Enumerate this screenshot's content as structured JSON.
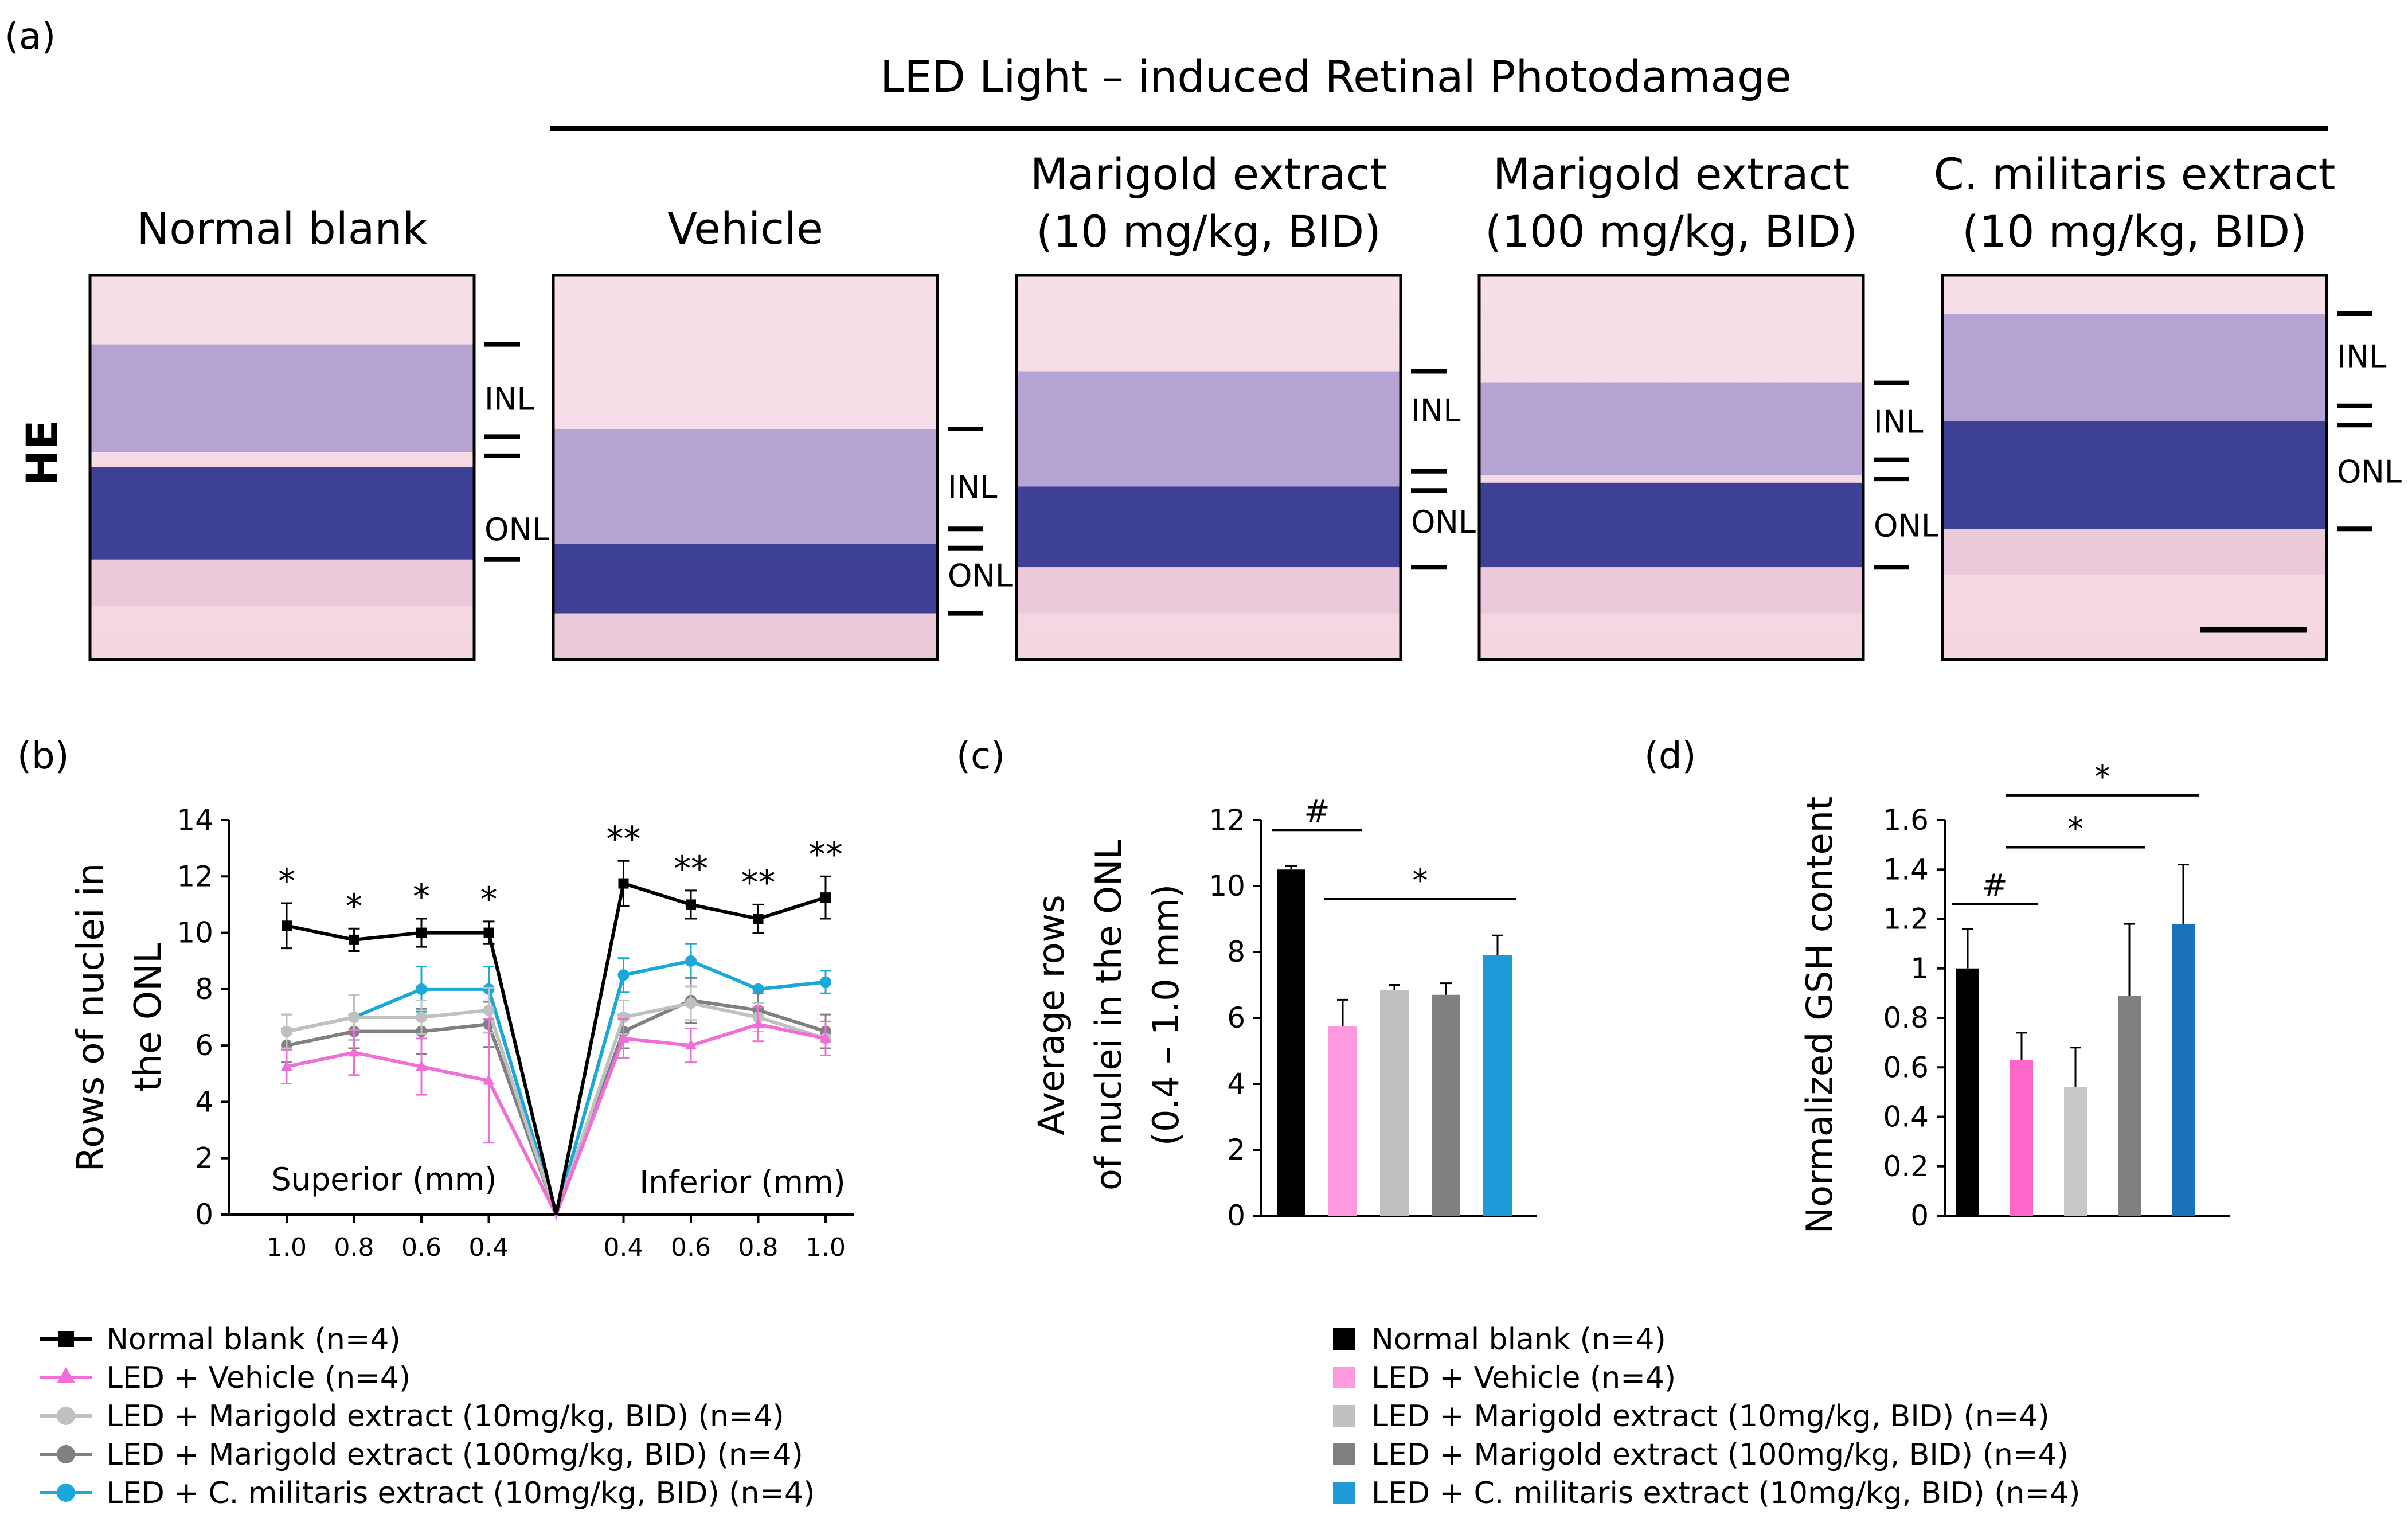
{
  "panel_a": {
    "label": "(a)",
    "header": "LED Light – induced Retinal Photodamage",
    "stain": "HE",
    "columns": [
      {
        "title_lines": [
          "Normal blank"
        ],
        "markers": [
          [
            "INL",
            0.32
          ],
          [
            "ONL",
            0.66
          ]
        ]
      },
      {
        "title_lines": [
          "Vehicle"
        ],
        "markers": [
          [
            "INL",
            0.55
          ],
          [
            "ONL",
            0.78
          ]
        ]
      },
      {
        "title_lines": [
          "Marigold extract",
          "(10 mg/kg, BID)"
        ],
        "markers": [
          [
            "INL",
            0.35
          ],
          [
            "ONL",
            0.64
          ]
        ]
      },
      {
        "title_lines": [
          "Marigold extract",
          "(100 mg/kg, BID)"
        ],
        "markers": [
          [
            "INL",
            0.38
          ],
          [
            "ONL",
            0.65
          ]
        ]
      },
      {
        "title_lines": [
          "C. militaris extract",
          "(10 mg/kg, BID)"
        ],
        "markers": [
          [
            "INL",
            0.21
          ],
          [
            "ONL",
            0.51
          ]
        ]
      }
    ]
  },
  "panel_b_label": "(b)",
  "panel_c_label": "(c)",
  "panel_d_label": "(d)",
  "chart_data": [
    {
      "id": "b",
      "type": "line",
      "ylabel_lines": [
        "Rows of nuclei in",
        "the ONL"
      ],
      "ylim": [
        0,
        14
      ],
      "yticks": [
        "0",
        "2",
        "4",
        "6",
        "8",
        "10",
        "12",
        "14"
      ],
      "x": [
        "1.0",
        "0.8",
        "0.6",
        "0.4",
        "0",
        "0.4",
        "0.6",
        "0.8",
        "1.0"
      ],
      "annotations": [
        "Superior (mm)",
        "Inferior (mm)"
      ],
      "significance": [
        "*",
        "*",
        "*",
        "*",
        "",
        "**",
        "**",
        "**",
        "**"
      ],
      "series": [
        {
          "name": "Normal blank (n=4)",
          "color": "#000000",
          "marker": "square",
          "values": [
            10.25,
            9.75,
            10.0,
            10.0,
            0,
            11.75,
            11.0,
            10.5,
            11.25
          ],
          "errors": [
            0.8,
            0.4,
            0.5,
            0.4,
            0,
            0.8,
            0.5,
            0.5,
            0.75
          ]
        },
        {
          "name": "LED + Vehicle (n=4)",
          "color": "#f06fd6",
          "marker": "triangle",
          "values": [
            5.25,
            5.75,
            5.25,
            4.75,
            0,
            6.25,
            6.0,
            6.75,
            6.25
          ],
          "errors": [
            0.6,
            0.8,
            1.0,
            2.2,
            0,
            0.7,
            0.6,
            0.6,
            0.6
          ]
        },
        {
          "name": "LED + Marigold extract (10mg/kg, BID) (n=4)",
          "color": "#c0c0c0",
          "marker": "circle",
          "values": [
            6.5,
            7.0,
            7.0,
            7.25,
            0,
            7.0,
            7.5,
            7.0,
            6.25
          ],
          "errors": [
            0.6,
            0.8,
            0.6,
            0.8,
            0,
            0.6,
            0.6,
            0.5,
            0.6
          ]
        },
        {
          "name": "LED + Marigold extract (100mg/kg, BID) (n=4)",
          "color": "#808080",
          "marker": "circle",
          "values": [
            6.0,
            6.5,
            6.5,
            6.75,
            0,
            6.5,
            7.6,
            7.25,
            6.5
          ],
          "errors": [
            0.6,
            0.6,
            0.8,
            0.8,
            0,
            0.6,
            0.8,
            0.6,
            0.6
          ]
        },
        {
          "name": "LED + C. militaris extract (10mg/kg, BID) (n=4)",
          "color": "#1aa7d9",
          "marker": "circle",
          "values": [
            6.5,
            7.0,
            8.0,
            8.0,
            0,
            8.5,
            9.0,
            8.0,
            8.25
          ],
          "errors": [
            0.6,
            0.8,
            0.8,
            0.8,
            0,
            0.6,
            0.6,
            0.0,
            0.4
          ]
        }
      ]
    },
    {
      "id": "c",
      "type": "bar",
      "ylabel_lines": [
        "Average rows",
        "of  nuclei  in the ONL",
        "(0.4 – 1.0 mm)"
      ],
      "ylim": [
        0,
        12
      ],
      "yticks": [
        "0",
        "2",
        "4",
        "6",
        "8",
        "10",
        "12"
      ],
      "categories": [
        "Normal blank (n=4)",
        "LED + Vehicle (n=4)",
        "LED + Marigold extract (10mg/kg, BID) (n=4)",
        "LED + Marigold extract (100mg/kg, BID) (n=4)",
        "LED + C. militaris extract (10mg/kg, BID) (n=4)"
      ],
      "values": [
        10.5,
        5.75,
        6.85,
        6.7,
        7.9
      ],
      "errors": [
        0.1,
        0.8,
        0.15,
        0.35,
        0.6
      ],
      "colors": [
        "#000000",
        "#ff99dd",
        "#c0c0c0",
        "#808080",
        "#1e9bd7"
      ],
      "brackets": [
        {
          "from": 0,
          "to": 1,
          "label": "#",
          "y": 11.7
        },
        {
          "from": 1,
          "to": 4,
          "label": "*",
          "y": 9.6
        }
      ]
    },
    {
      "id": "d",
      "type": "bar",
      "ylabel_lines": [
        "Normalized GSH content"
      ],
      "ylim": [
        0,
        1.6
      ],
      "yticks": [
        "0",
        "0.2",
        "0.4",
        "0.6",
        "0.8",
        "1",
        "1.2",
        "1.4",
        "1.6"
      ],
      "categories": [
        "Normal blank (n=4)",
        "LED + Vehicle (n=4)",
        "LED + Marigold extract (10mg/kg, BID) (n=4)",
        "LED + Marigold extract (100mg/kg, BID) (n=4)",
        "LED + C. militaris extract (10mg/kg, BID) (n=4)"
      ],
      "values": [
        1.0,
        0.63,
        0.52,
        0.89,
        1.18
      ],
      "errors": [
        0.16,
        0.11,
        0.16,
        0.29,
        0.24
      ],
      "colors": [
        "#000000",
        "#ff66cc",
        "#c8c8c8",
        "#808080",
        "#1a73b8"
      ],
      "brackets": [
        {
          "from": 0,
          "to": 1,
          "label": "#",
          "y": 1.26
        },
        {
          "from": 1,
          "to": 3,
          "label": "*",
          "y": 1.49
        },
        {
          "from": 1,
          "to": 4,
          "label": "*",
          "y": 1.7
        }
      ]
    }
  ],
  "legend_left": {
    "entries": [
      {
        "label": "Normal blank (n=4)",
        "color": "#000000",
        "marker": "square"
      },
      {
        "label": "LED + Vehicle (n=4)",
        "color": "#f06fd6",
        "marker": "triangle"
      },
      {
        "label": "LED + Marigold extract (10mg/kg, BID) (n=4)",
        "color": "#c0c0c0",
        "marker": "circle"
      },
      {
        "label": "LED + Marigold extract (100mg/kg, BID) (n=4)",
        "color": "#808080",
        "marker": "circle"
      },
      {
        "label": "LED + C. militaris extract (10mg/kg, BID) (n=4)",
        "color": "#1aa7d9",
        "marker": "circle"
      }
    ]
  },
  "legend_right": {
    "entries": [
      {
        "label": "Normal blank (n=4)",
        "color": "#000000"
      },
      {
        "label": "LED + Vehicle (n=4)",
        "color": "#ff99dd"
      },
      {
        "label": "LED + Marigold extract (10mg/kg, BID) (n=4)",
        "color": "#c0c0c0"
      },
      {
        "label": "LED + Marigold extract (100mg/kg, BID) (n=4)",
        "color": "#808080"
      },
      {
        "label": "LED + C. militaris extract (10mg/kg, BID) (n=4)",
        "color": "#1e9bd7"
      }
    ]
  }
}
